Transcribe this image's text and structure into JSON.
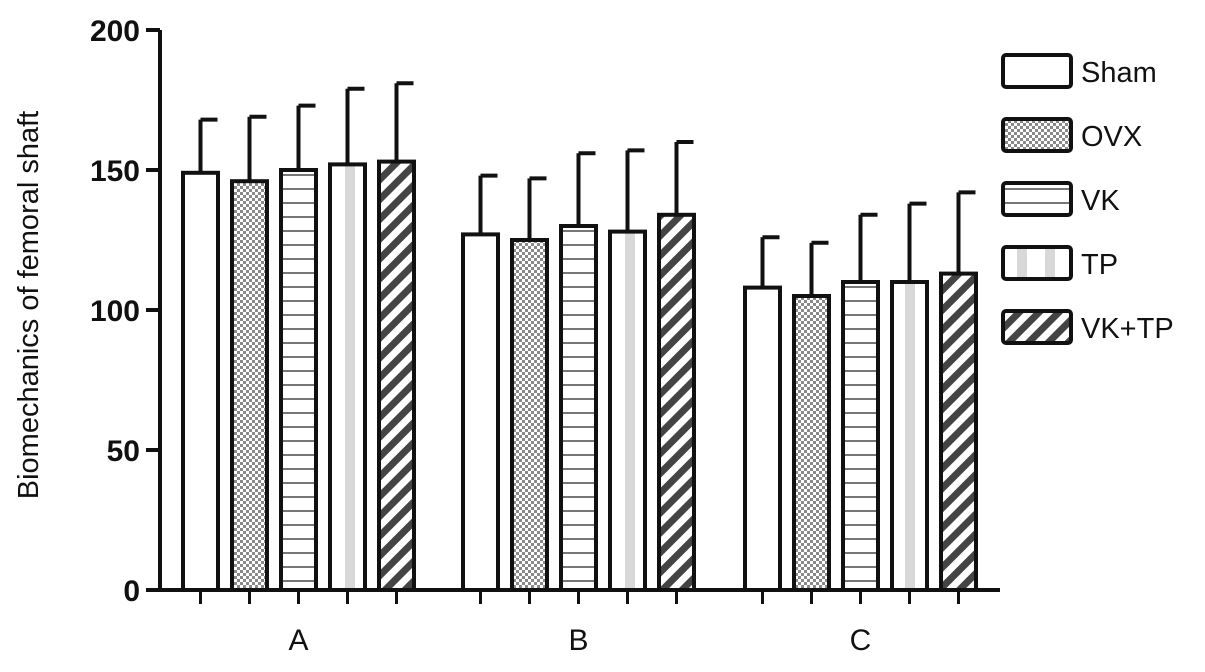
{
  "chart_data": {
    "type": "bar",
    "title": "",
    "xlabel": "",
    "ylabel": "Biomechanics of femoral shaft",
    "ylim": [
      0,
      200
    ],
    "yticks": [
      0,
      50,
      100,
      150,
      200
    ],
    "grid": false,
    "legend_position": "right",
    "categories": [
      "A",
      "B",
      "C"
    ],
    "series": [
      {
        "name": "Sham",
        "pattern": "plain",
        "values": [
          149,
          127,
          108
        ],
        "errors": [
          19,
          21,
          18
        ]
      },
      {
        "name": "OVX",
        "pattern": "crosshatch",
        "values": [
          146,
          125,
          105
        ],
        "errors": [
          23,
          22,
          19
        ]
      },
      {
        "name": "VK",
        "pattern": "horizontal",
        "values": [
          150,
          130,
          110
        ],
        "errors": [
          23,
          26,
          24
        ]
      },
      {
        "name": "TP",
        "pattern": "vertical",
        "values": [
          152,
          128,
          110
        ],
        "errors": [
          27,
          29,
          28
        ]
      },
      {
        "name": "VK+TP",
        "pattern": "diagonal",
        "values": [
          153,
          134,
          113
        ],
        "errors": [
          28,
          26,
          29
        ]
      }
    ],
    "colors": {
      "stroke": "#111111",
      "fill": "#ffffff",
      "hatch": "#444444"
    }
  }
}
